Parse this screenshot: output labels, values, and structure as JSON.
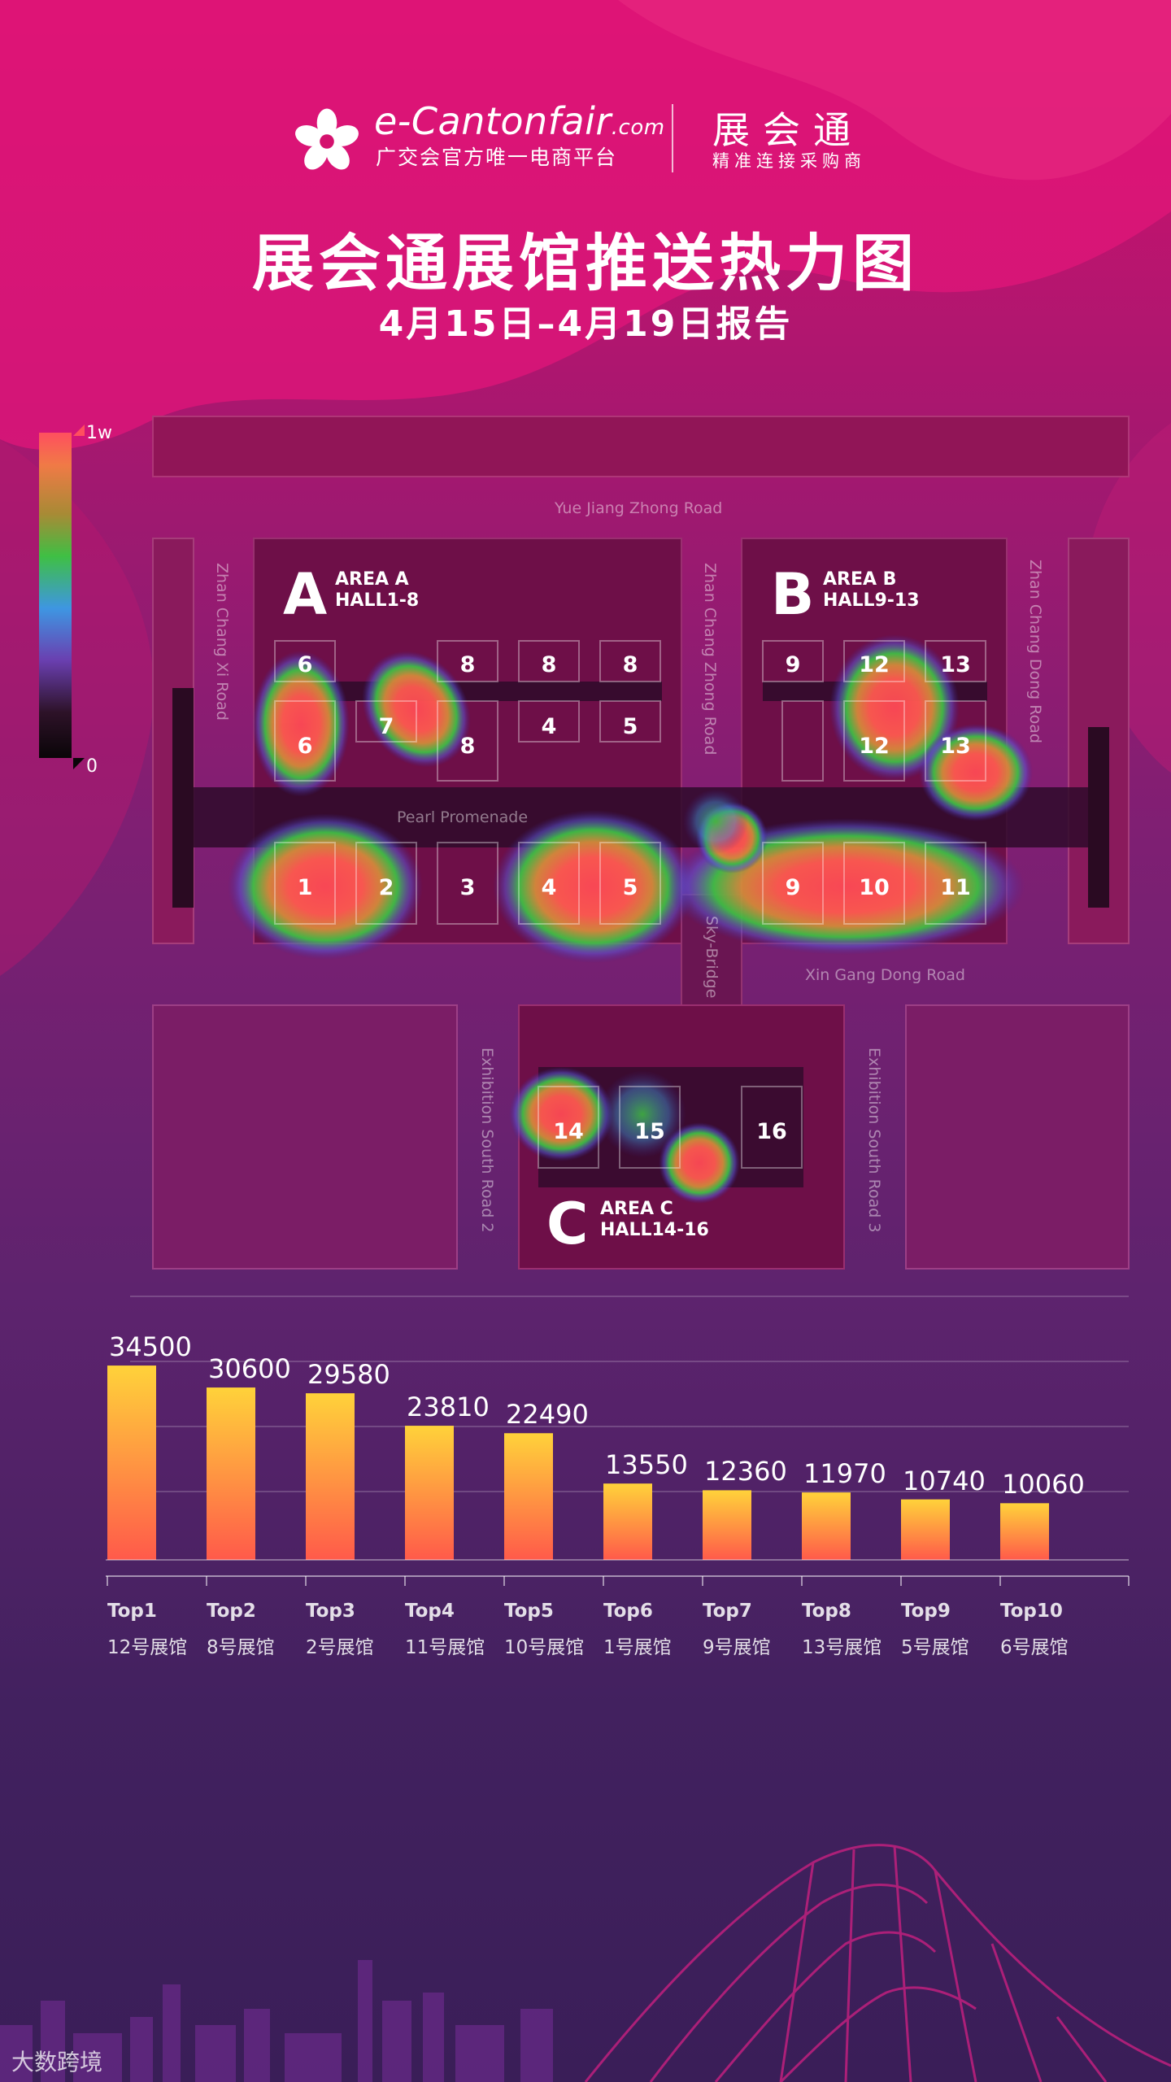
{
  "header": {
    "brand_name": "e-Cantonfair",
    "brand_suffix": ".com",
    "brand_tagline": "广交会官方唯一电商平台",
    "product_name": "展会通",
    "product_tagline": "精准连接采购商",
    "title": "展会通展馆推送热力图",
    "subtitle": "4月15日–4月19日报告"
  },
  "legend": {
    "max_label": "1w",
    "min_label": "0"
  },
  "map": {
    "roads": {
      "yue_jiang": "Yue Jiang Zhong Road",
      "zhan_chang_xi": "Zhan Chang Xi Road",
      "zhan_chang_zhong": "Zhan Chang Zhong Road",
      "zhan_chang_dong": "Zhan Chang Dong Road",
      "pearl": "Pearl Promenade",
      "xin_gang": "Xin Gang Dong Road",
      "sky_bridge": "Sky-Bridge",
      "exhibition_2": "Exhibition South Road 2",
      "exhibition_3": "Exhibition South Road 3"
    },
    "areas": [
      {
        "letter": "A",
        "line1": "AREA  A",
        "line2": "HALL1-8"
      },
      {
        "letter": "B",
        "line1": "AREA  B",
        "line2": "HALL9-13"
      },
      {
        "letter": "C",
        "line1": "AREA  C",
        "line2": "HALL14-16"
      }
    ],
    "halls": [
      "6",
      "8",
      "8",
      "8",
      "6",
      "7",
      "8",
      "4",
      "5",
      "1",
      "2",
      "3",
      "4",
      "5",
      "9",
      "12",
      "13",
      "12",
      "13",
      "9",
      "10",
      "11",
      "14",
      "15",
      "16"
    ]
  },
  "chart_data": {
    "type": "bar",
    "title": "",
    "categories": [
      "Top1",
      "Top2",
      "Top3",
      "Top4",
      "Top5",
      "Top6",
      "Top7",
      "Top8",
      "Top9",
      "Top10"
    ],
    "hall_labels": [
      "12号展馆",
      "8号展馆",
      "2号展馆",
      "11号展馆",
      "10号展馆",
      "1号展馆",
      "9号展馆",
      "13号展馆",
      "5号展馆",
      "6号展馆"
    ],
    "values": [
      34500,
      30600,
      29580,
      23810,
      22490,
      13550,
      12360,
      11970,
      10740,
      10060
    ],
    "ylim": [
      0,
      40000
    ],
    "grid": true,
    "colors": {
      "bar_top": "#ffd23a",
      "bar_bottom": "#ff5a4a"
    }
  },
  "watermark": "大数跨境"
}
